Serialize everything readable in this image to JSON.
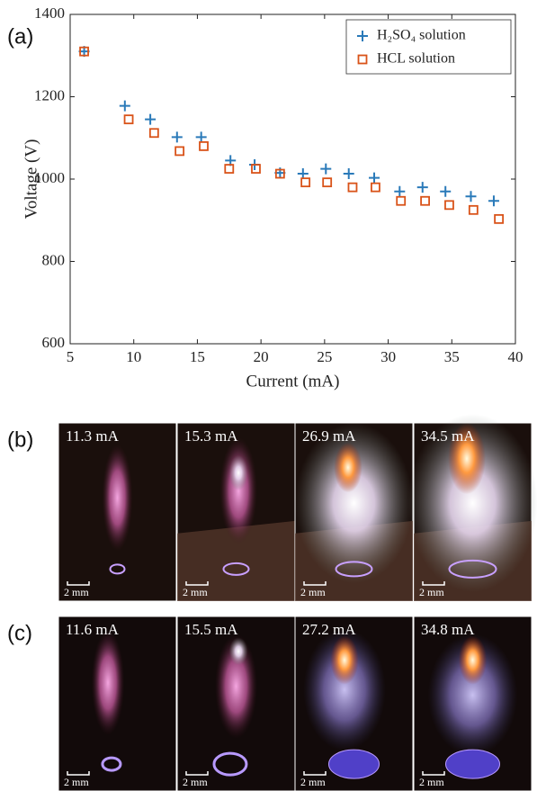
{
  "chart_data": {
    "type": "scatter",
    "panel_label": "(a)",
    "x_label": "Current (mA)",
    "y_label": "Voltage (V)",
    "xlim": [
      5,
      40
    ],
    "xticks": [
      5,
      10,
      15,
      20,
      25,
      30,
      35,
      40
    ],
    "ylim": [
      600,
      1400
    ],
    "yticks": [
      600,
      800,
      1000,
      1200,
      1400
    ],
    "legend": "upper right",
    "series": [
      {
        "name": "H₂SO₄ solution",
        "color": "#2a7ab9",
        "marker": "plus",
        "x": [
          6.1,
          9.3,
          11.3,
          13.4,
          15.3,
          17.6,
          19.5,
          21.5,
          23.3,
          25.1,
          26.9,
          28.9,
          30.9,
          32.7,
          34.5,
          36.5,
          38.3
        ],
        "values": [
          1310,
          1178,
          1145,
          1102,
          1102,
          1045,
          1035,
          1015,
          1013,
          1025,
          1013,
          1003,
          970,
          980,
          970,
          958,
          947
        ]
      },
      {
        "name": "HCL solution",
        "color": "#d95319",
        "marker": "square",
        "x": [
          6.1,
          9.6,
          11.6,
          13.6,
          15.5,
          17.5,
          19.6,
          21.5,
          23.5,
          25.2,
          27.2,
          29.0,
          31.0,
          32.9,
          34.8,
          36.7,
          38.7
        ],
        "values": [
          1310,
          1145,
          1112,
          1068,
          1080,
          1025,
          1025,
          1013,
          992,
          992,
          980,
          980,
          947,
          947,
          937,
          925,
          903
        ]
      }
    ]
  },
  "photos": {
    "b": {
      "panel_label": "(b)",
      "panels": [
        {
          "label": "11.3 mA",
          "scale": "2 mm"
        },
        {
          "label": "15.3 mA",
          "scale": "2 mm"
        },
        {
          "label": "26.9 mA",
          "scale": "2 mm"
        },
        {
          "label": "34.5 mA",
          "scale": "2 mm"
        }
      ]
    },
    "c": {
      "panel_label": "(c)",
      "panels": [
        {
          "label": "11.6 mA",
          "scale": "2 mm"
        },
        {
          "label": "15.5 mA",
          "scale": "2 mm"
        },
        {
          "label": "27.2 mA",
          "scale": "2 mm"
        },
        {
          "label": "34.8 mA",
          "scale": "2 mm"
        }
      ]
    }
  }
}
